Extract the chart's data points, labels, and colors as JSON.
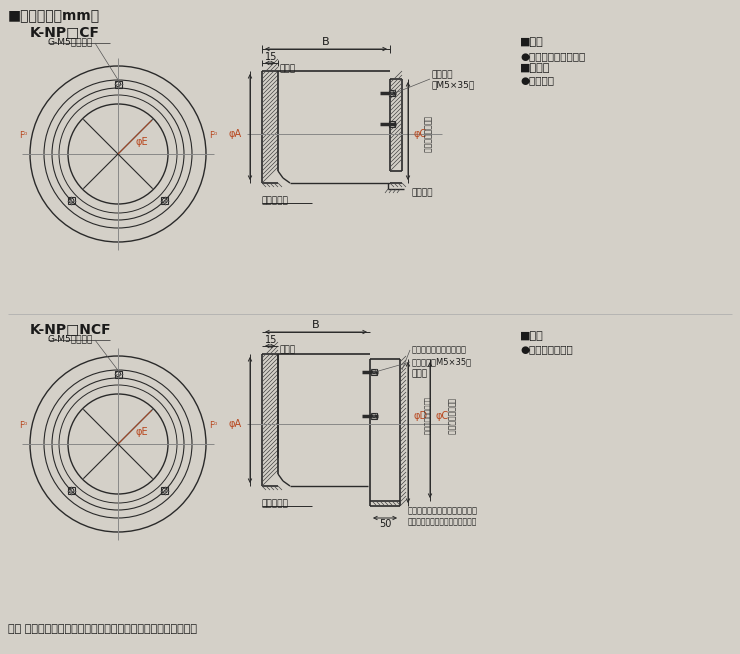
{
  "bg_color": "#d4d0c8",
  "line_color": "#2a2a2a",
  "dim_color": "#b8471e",
  "gray_line": "#888888",
  "title": "■外形寸法（mm）",
  "model1": "K-NP□CF",
  "model2": "K-NP□NCF",
  "note": "注） ダクトおよびノズル外部の断熱は現地施工してください。",
  "spec1_title": "■仕様",
  "spec1_1": "●フェース：アルミ製",
  "spec1_2": "■付属品",
  "spec1_3": "●取付ねじ",
  "spec2_title": "■仕様",
  "spec2_1": "●取付核：鈡板製",
  "lbl_nozzle": "ノズル",
  "lbl_screw1": "取付ねじ",
  "lbl_screw1b": "（M5×35）",
  "lbl_seal": "シール材",
  "lbl_ceiling": "下り天井面",
  "lbl_gm5": "G-M5用ねじ穴",
  "lbl_phiA": "φA",
  "lbl_phiC": "φC",
  "lbl_phiE": "φE",
  "lbl_phiD": "φD",
  "lbl_B": "B",
  "lbl_15": "15",
  "lbl_Fo1": "F⁰",
  "lbl_Fo2": "F⁰",
  "lbl_dim_ceiling": "（天井開口寸法）",
  "lbl_sheet_duct": "板金ダクト（現地調達）",
  "lbl_screw2": "取付ねじ（M5×35）",
  "lbl_frame": "取付框",
  "lbl_50": "50",
  "lbl_fix1": "取付框と板金ダクトをねじ固定",
  "lbl_fix2": "（ダクト用取付ねじは現地調達）",
  "lbl_duct_inner": "（ダクト内径寸法）"
}
